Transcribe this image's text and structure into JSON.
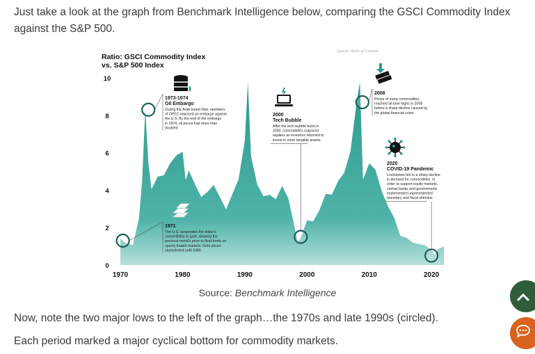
{
  "intro_text": "Just take a look at the graph from Benchmark Intelligence below, comparing the GSCI Commodity Index against the S&P 500.",
  "caption": {
    "prefix": "Source: ",
    "source": "Benchmark Intelligence"
  },
  "para1": "Now, note the two major lows to the left of the graph…the 1970s and late 1990s (circled).",
  "para2": "Each period marked a major cyclical bottom for commodity markets.",
  "colors": {
    "area": "#2d9a8f",
    "area_light": "#9fd3cc",
    "accent": "#1f6f6a",
    "scroll_top": "#2f5d3a",
    "chat": "#d9621e"
  },
  "icons": {
    "scroll_top": "chevron-up-icon",
    "chat": "chat-bubble-icon"
  },
  "chart_data": {
    "type": "area",
    "title": "Ratio: GSCI Commodity Index vs. S&P 500 Index",
    "source_note": "Source: Bank of Canada",
    "x_ticks": [
      "1970",
      "1980",
      "1990",
      "2000",
      "2010",
      "2020"
    ],
    "y_ticks": [
      "0",
      "2",
      "4",
      "6",
      "8",
      "10"
    ],
    "xlim": [
      1970,
      2022
    ],
    "ylim": [
      0,
      10
    ],
    "grid": false,
    "series": [
      {
        "x": [
          1970,
          1971,
          1972,
          1973,
          1973.5,
          1974,
          1974.5,
          1975,
          1976,
          1977,
          1978,
          1979,
          1980,
          1980.5,
          1981,
          1982,
          1983,
          1984,
          1985,
          1986,
          1987,
          1988,
          1989,
          1990,
          1990.5,
          1991,
          1992,
          1993,
          1994,
          1995,
          1996,
          1997,
          1998,
          1998.5,
          1999,
          2000,
          2001,
          2002,
          2003,
          2004,
          2005,
          2006,
          2007,
          2008,
          2008.5,
          2009,
          2010,
          2011,
          2012,
          2013,
          2014,
          2015,
          2016,
          2017,
          2018,
          2019,
          2020,
          2020.5,
          2021,
          2022
        ],
        "y": [
          1.4,
          1.2,
          1.0,
          2.5,
          4.5,
          8.3,
          5.5,
          4.0,
          4.7,
          4.8,
          5.5,
          5.9,
          6.0,
          4.6,
          5.1,
          4.3,
          3.7,
          3.9,
          4.3,
          3.6,
          3.0,
          3.8,
          4.6,
          6.6,
          9.7,
          5.8,
          4.3,
          3.6,
          3.7,
          3.5,
          4.3,
          3.6,
          2.0,
          1.2,
          1.4,
          2.4,
          2.4,
          3.0,
          3.8,
          3.8,
          4.5,
          5.0,
          6.1,
          8.7,
          9.8,
          4.6,
          5.4,
          5.1,
          3.9,
          3.1,
          2.5,
          1.5,
          1.5,
          1.2,
          1.1,
          1.1,
          0.8,
          0.5,
          0.8,
          1.0
        ]
      }
    ],
    "annotations": [
      {
        "year": "1973-1974",
        "title": "Oil Embargo",
        "text": "During the Arab-Israeli War, members of OPEC imposed an embargo against the U.S. By the end of the embargo in 1974, oil prices had more than doubled."
      },
      {
        "year": "2000",
        "title": "Tech Bubble",
        "text": "After the tech bubble burst in 2000, commodities outpaced equities as investors returned to invest in more tangible assets."
      },
      {
        "year": "2008",
        "title": "",
        "text": "Prices of many commodities reached all-time highs in 2008 before a sharp decline caused by the global financial crisis."
      },
      {
        "year": "2020",
        "title": "COVID-19 Pandemic",
        "text": "Lockdowns led to a sharp decline in demand for commodities. In order to support equity markets, central banks and governments implemented unprecedented monetary and fiscal stimulus."
      },
      {
        "year": "1971",
        "title": "",
        "text": "The U.S. suspended the dollar's convertibility to gold, allowing the precious metal's price to float freely on openly traded markets. Gold prices skyrocketed until 1980."
      }
    ]
  }
}
